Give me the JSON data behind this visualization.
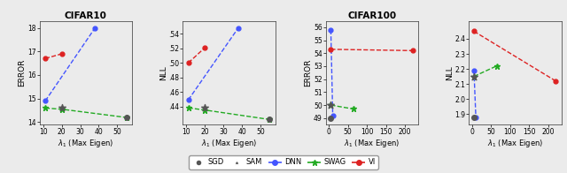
{
  "cifar10_error": {
    "title": "CIFAR10",
    "xlabel": "$\\lambda_1$ (Max Eigen)",
    "ylabel": "ERROR",
    "DNN": {
      "x": [
        11,
        38
      ],
      "y": [
        14.9,
        18.0
      ]
    },
    "SWAG": {
      "x": [
        11,
        20,
        55
      ],
      "y": [
        14.6,
        14.55,
        14.2
      ]
    },
    "VI": {
      "x": [
        11,
        20
      ],
      "y": [
        16.7,
        16.9
      ]
    },
    "SGD_x": 55,
    "SGD_y": 14.2,
    "SAM_x": 20,
    "SAM_y": 14.6,
    "ylim": [
      13.9,
      18.3
    ],
    "yticks": [
      14,
      15,
      16,
      17,
      18
    ],
    "xlim": [
      8,
      58
    ],
    "xticks": [
      10,
      20,
      30,
      40,
      50
    ]
  },
  "cifar10_nll": {
    "xlabel": "$\\lambda_1$ (Max Eigen)",
    "ylabel": "NLL",
    "DNN": {
      "x": [
        11,
        38
      ],
      "y": [
        0.449,
        0.548
      ]
    },
    "SWAG": {
      "x": [
        11,
        20,
        55
      ],
      "y": [
        0.438,
        0.435,
        0.422
      ]
    },
    "VI": {
      "x": [
        11,
        20
      ],
      "y": [
        0.5,
        0.521
      ]
    },
    "SGD_x": 55,
    "SGD_y": 0.422,
    "SAM_x": 20,
    "SAM_y": 0.438,
    "ylim": [
      0.415,
      0.558
    ],
    "yticks": [
      0.44,
      0.46,
      0.48,
      0.5,
      0.52,
      0.54
    ],
    "xlim": [
      8,
      58
    ],
    "xticks": [
      10,
      20,
      30,
      40,
      50
    ]
  },
  "cifar100_error": {
    "title": "CIFAR100",
    "xlabel": "$\\lambda_1$ (Max Eigen)",
    "ylabel": "ERROR",
    "DNN": {
      "x": [
        5,
        10
      ],
      "y": [
        55.8,
        49.2
      ]
    },
    "SWAG": {
      "x": [
        5,
        65
      ],
      "y": [
        50.0,
        49.7
      ]
    },
    "VI": {
      "x": [
        5,
        220
      ],
      "y": [
        54.3,
        54.2
      ]
    },
    "SGD_x": 5,
    "SGD_y": 49.0,
    "SAM_x": 5,
    "SAM_y": 50.0,
    "ylim": [
      48.5,
      56.5
    ],
    "yticks": [
      49,
      50,
      51,
      52,
      53,
      54,
      55,
      56
    ],
    "xlim": [
      -8,
      235
    ],
    "xticks": [
      0,
      50,
      100,
      150,
      200
    ]
  },
  "cifar100_nll": {
    "xlabel": "$\\lambda_1$ (Max Eigen)",
    "ylabel": "NLL",
    "DNN": {
      "x": [
        5,
        10
      ],
      "y": [
        2.19,
        1.88
      ]
    },
    "SWAG": {
      "x": [
        5,
        65
      ],
      "y": [
        2.15,
        2.22
      ]
    },
    "VI": {
      "x": [
        5,
        220
      ],
      "y": [
        2.45,
        2.12
      ]
    },
    "SGD_x": 5,
    "SGD_y": 1.88,
    "SAM_x": 5,
    "SAM_y": 2.15,
    "ylim": [
      1.83,
      2.52
    ],
    "yticks": [
      1.9,
      2.0,
      2.1,
      2.2,
      2.3,
      2.4
    ],
    "xlim": [
      -8,
      235
    ],
    "xticks": [
      0,
      50,
      100,
      150,
      200
    ]
  },
  "dnn_color": "#4455ff",
  "swag_color": "#22aa22",
  "vi_color": "#dd2222",
  "sgd_color": "#555555",
  "sam_color": "#555555",
  "bg_color": "#ebebeb"
}
